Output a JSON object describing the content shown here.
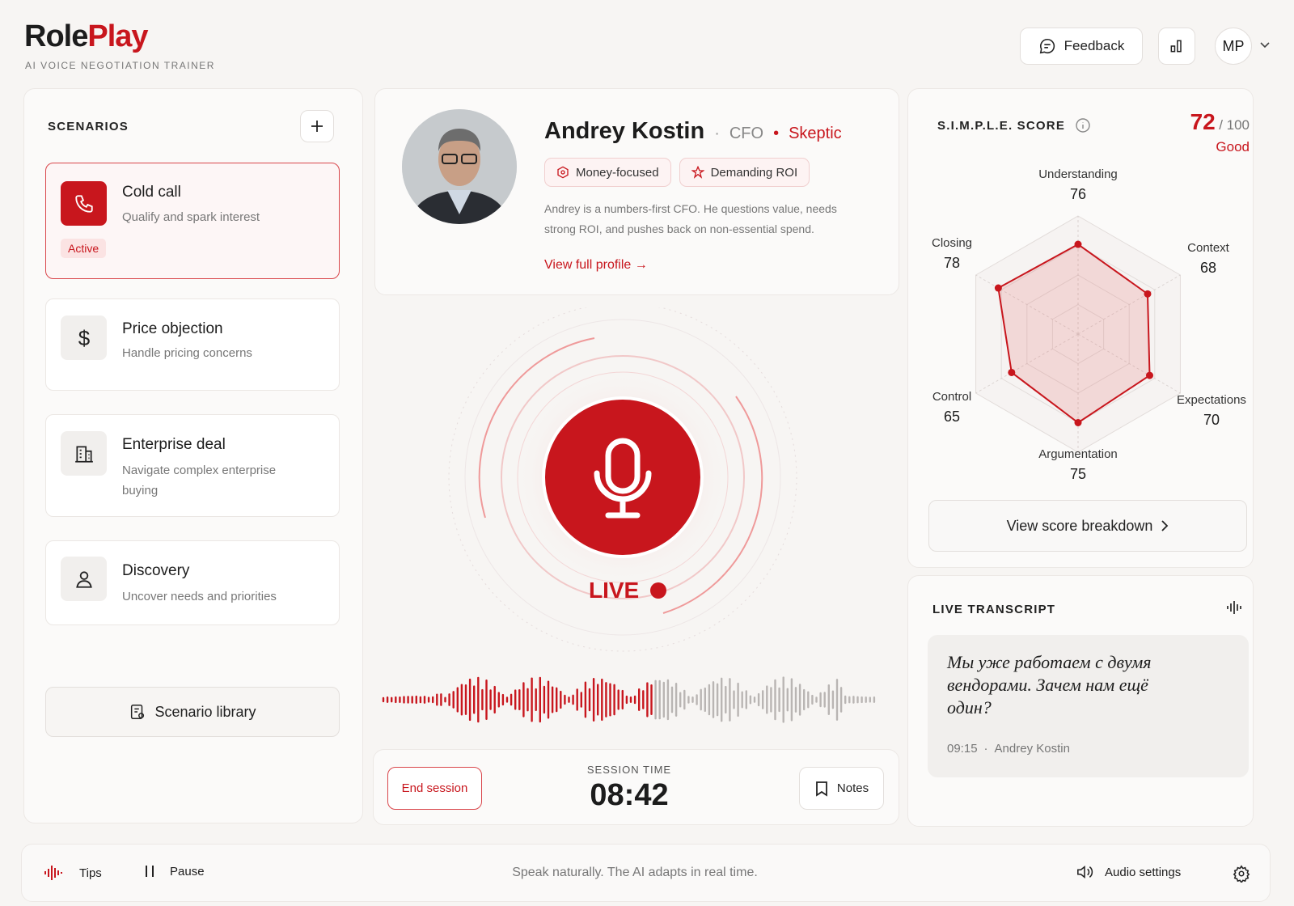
{
  "header": {
    "logo_main": "Role",
    "logo_accent": "Play",
    "subtitle": "AI VOICE NEGOTIATION TRAINER",
    "feedback": "Feedback",
    "user_initials": "MP"
  },
  "scenarios": {
    "title": "SCENARIOS",
    "items": [
      {
        "title": "Cold call",
        "subtitle": "Qualify and spark interest",
        "badge": "Active"
      },
      {
        "title": "Price objection",
        "subtitle": "Handle pricing concerns"
      },
      {
        "title": "Enterprise deal",
        "subtitle": "Navigate complex enterprise buying"
      },
      {
        "title": "Discovery",
        "subtitle": "Uncover needs and priorities"
      }
    ],
    "library": "Scenario library"
  },
  "profile": {
    "name": "Andrey Kostin",
    "role": "CFO",
    "persona": "Skeptic",
    "tags": [
      "Money-focused",
      "Demanding ROI"
    ],
    "description": "Andrey is a numbers-first CFO. He questions value, needs strong ROI, and pushes back on non-essential spend.",
    "link": "View full profile →"
  },
  "live": {
    "status": "LIVE"
  },
  "session": {
    "end": "End session",
    "time_label": "SESSION TIME",
    "time": "08:42",
    "notes": "Notes"
  },
  "score": {
    "title": "S.I.M.P.L.E. SCORE",
    "value": 72,
    "max": {
      "value": 100,
      "label": "/ 100"
    },
    "rating": "Good",
    "radar": [
      {
        "label": "Understanding",
        "value": 76
      },
      {
        "label": "Context",
        "value": 68
      },
      {
        "label": "Expectations",
        "value": 70
      },
      {
        "label": "Argumentation",
        "value": 75
      },
      {
        "label": "Control",
        "value": 65
      },
      {
        "label": "Closing",
        "value": 78
      }
    ],
    "button": "View score breakdown"
  },
  "transcript": {
    "title": "LIVE TRANSCRIPT",
    "text": "Мы уже работаем с двумя вендорами. Зачем нам ещё один?",
    "time": "09:15",
    "speaker": "Andrey Kostin"
  },
  "footer": {
    "tips": "Tips",
    "pause": "Pause",
    "hint": "Speak naturally. The AI adapts in real time.",
    "audio": "Audio settings"
  }
}
